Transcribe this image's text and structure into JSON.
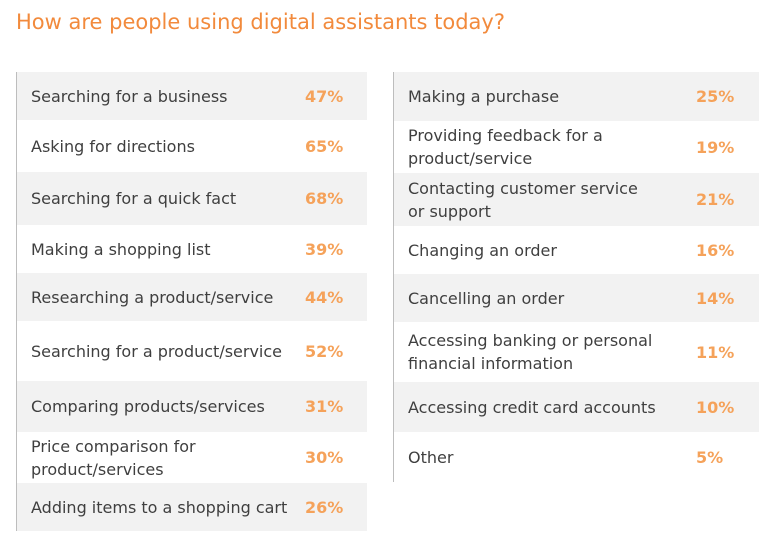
{
  "header": {
    "title": "How are people using digital assistants today?"
  },
  "left": {
    "rows": [
      {
        "label": "Searching for a business",
        "value": "47%"
      },
      {
        "label": "Asking for directions",
        "value": "65%"
      },
      {
        "label": "Searching for a quick fact",
        "value": "68%"
      },
      {
        "label": "Making a shopping list",
        "value": "39%"
      },
      {
        "label": "Researching a product/service",
        "value": "44%"
      },
      {
        "label": "Searching for a product/service",
        "value": "52%"
      },
      {
        "label": "Comparing products/services",
        "value": "31%"
      },
      {
        "label": "Price comparison for\nproduct/services",
        "value": "30%"
      },
      {
        "label": "Adding items to a shopping cart",
        "value": "26%"
      }
    ]
  },
  "right": {
    "rows": [
      {
        "label": "Making a purchase",
        "value": "25%"
      },
      {
        "label": "Providing feedback for a\nproduct/service",
        "value": "19%"
      },
      {
        "label": "Contacting customer service\nor support",
        "value": "21%"
      },
      {
        "label": "Changing an order",
        "value": "16%"
      },
      {
        "label": "Cancelling an order",
        "value": "14%"
      },
      {
        "label": "Accessing banking or personal\nfinancial information",
        "value": "11%"
      },
      {
        "label": "Accessing credit card accounts",
        "value": "10%"
      },
      {
        "label": "Other",
        "value": "5%"
      }
    ]
  }
}
